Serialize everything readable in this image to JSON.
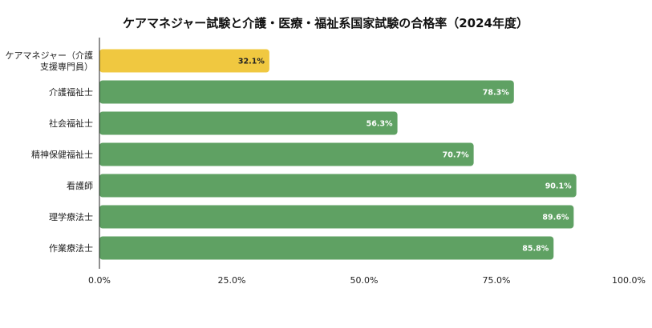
{
  "chart_data": {
    "type": "bar",
    "orientation": "horizontal",
    "title": "ケアマネジャー試験と介護・医療・福祉系国家試験の合格率（2024年度）",
    "xlabel": "",
    "ylabel": "",
    "xlim": [
      0,
      100
    ],
    "x_ticks": [
      {
        "value": 0,
        "label": "0.0%"
      },
      {
        "value": 25,
        "label": "25.0%"
      },
      {
        "value": 50,
        "label": "50.0%"
      },
      {
        "value": 75,
        "label": "75.0%"
      },
      {
        "value": 100,
        "label": "100.0%"
      }
    ],
    "grid": false,
    "legend": "none",
    "bars": [
      {
        "category": [
          "ケアマネジャー（介護",
          "支援専門員）"
        ],
        "value": 32.1,
        "label": "32.1%",
        "color": "#F0C840",
        "label_color": "#222222"
      },
      {
        "category": [
          "介護福祉士"
        ],
        "value": 78.3,
        "label": "78.3%",
        "color": "#5FA163",
        "label_color": "#ffffff"
      },
      {
        "category": [
          "社会福祉士"
        ],
        "value": 56.3,
        "label": "56.3%",
        "color": "#5FA163",
        "label_color": "#ffffff"
      },
      {
        "category": [
          "精神保健福祉士"
        ],
        "value": 70.7,
        "label": "70.7%",
        "color": "#5FA163",
        "label_color": "#ffffff"
      },
      {
        "category": [
          "看護師"
        ],
        "value": 90.1,
        "label": "90.1%",
        "color": "#5FA163",
        "label_color": "#ffffff"
      },
      {
        "category": [
          "理学療法士"
        ],
        "value": 89.6,
        "label": "89.6%",
        "color": "#5FA163",
        "label_color": "#ffffff"
      },
      {
        "category": [
          "作業療法士"
        ],
        "value": 85.8,
        "label": "85.8%",
        "color": "#5FA163",
        "label_color": "#ffffff"
      }
    ]
  }
}
